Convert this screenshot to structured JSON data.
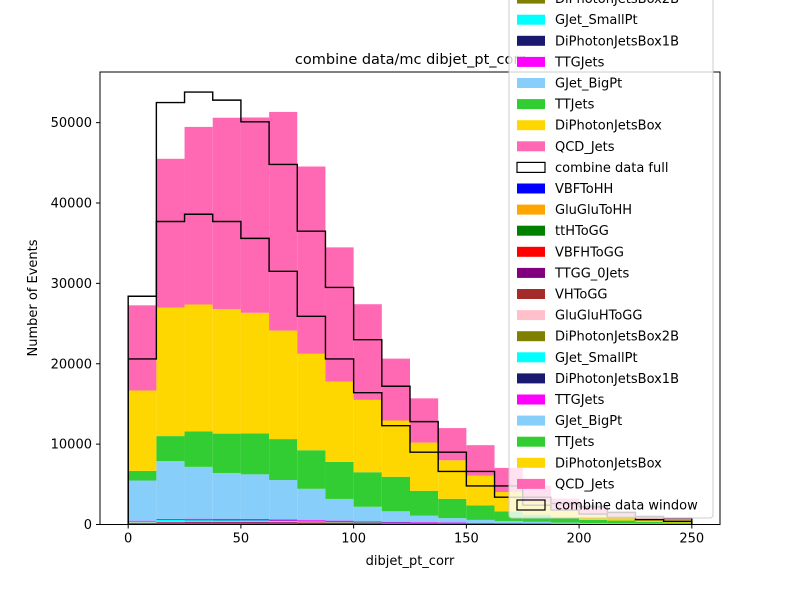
{
  "chart_data": {
    "type": "bar",
    "stacked": true,
    "title": "combine data/mc dibjet_pt_corr",
    "xlabel": "dibjet_pt_corr",
    "ylabel": "Number of Events",
    "xlim": [
      -12.5,
      262.5
    ],
    "ylim": [
      0,
      56300
    ],
    "xticks": [
      0,
      50,
      100,
      150,
      200,
      250
    ],
    "xtick_labels": [
      "0",
      "50",
      "100",
      "150",
      "200",
      "250"
    ],
    "yticks": [
      0,
      10000,
      20000,
      30000,
      40000,
      50000
    ],
    "ytick_labels": [
      "0",
      "10000",
      "20000",
      "30000",
      "40000",
      "50000"
    ],
    "grid": false,
    "legend_position": "upper-right",
    "bin_edges": [
      0,
      12.5,
      25,
      37.5,
      50,
      62.5,
      75,
      87.5,
      100,
      112.5,
      125,
      137.5,
      150,
      162.5,
      175,
      187.5,
      200,
      212.5,
      225,
      237.5,
      250
    ],
    "stack_series": [
      {
        "name": "VBFToHH",
        "color": "#0000ff",
        "values": [
          10,
          20,
          20,
          20,
          20,
          20,
          15,
          15,
          10,
          10,
          10,
          10,
          5,
          5,
          5,
          5,
          5,
          5,
          5,
          5
        ]
      },
      {
        "name": "GluGluToHH",
        "color": "#ffa500",
        "values": [
          20,
          30,
          30,
          30,
          30,
          30,
          25,
          20,
          20,
          15,
          15,
          10,
          10,
          10,
          10,
          5,
          5,
          5,
          5,
          5
        ]
      },
      {
        "name": "ttHToGG",
        "color": "#008000",
        "values": [
          40,
          60,
          60,
          60,
          60,
          60,
          50,
          45,
          40,
          35,
          30,
          25,
          20,
          15,
          15,
          10,
          10,
          10,
          10,
          5
        ]
      },
      {
        "name": "VBFHToGG",
        "color": "#ff0000",
        "values": [
          30,
          40,
          40,
          40,
          40,
          40,
          30,
          30,
          25,
          20,
          20,
          15,
          10,
          10,
          10,
          5,
          5,
          5,
          5,
          5
        ]
      },
      {
        "name": "TTGG_0Jets",
        "color": "#800080",
        "values": [
          60,
          100,
          120,
          120,
          120,
          110,
          100,
          90,
          70,
          60,
          50,
          40,
          35,
          30,
          25,
          20,
          15,
          15,
          10,
          10
        ]
      },
      {
        "name": "VHToGG",
        "color": "#a52a2a",
        "values": [
          30,
          40,
          40,
          40,
          40,
          40,
          30,
          30,
          25,
          20,
          20,
          15,
          15,
          10,
          10,
          5,
          5,
          5,
          5,
          5
        ]
      },
      {
        "name": "GluGluHToGG",
        "color": "#ffc0cb",
        "values": [
          60,
          80,
          80,
          70,
          70,
          60,
          50,
          40,
          35,
          30,
          25,
          20,
          15,
          15,
          10,
          10,
          5,
          5,
          5,
          5
        ]
      },
      {
        "name": "DiPhotonJetsBox2B",
        "color": "#808000",
        "values": [
          30,
          40,
          40,
          40,
          40,
          35,
          30,
          25,
          20,
          20,
          15,
          15,
          10,
          10,
          10,
          5,
          5,
          5,
          5,
          5
        ]
      },
      {
        "name": "GJet_SmallPt",
        "color": "#00ffff",
        "values": [
          100,
          150,
          100,
          100,
          80,
          60,
          50,
          40,
          30,
          20,
          15,
          10,
          10,
          5,
          5,
          5,
          5,
          5,
          5,
          5
        ]
      },
      {
        "name": "DiPhotonJetsBox1B",
        "color": "#191970",
        "values": [
          30,
          40,
          40,
          40,
          40,
          35,
          30,
          25,
          20,
          20,
          15,
          15,
          10,
          10,
          10,
          5,
          5,
          5,
          5,
          5
        ]
      },
      {
        "name": "TTGJets",
        "color": "#ff00ff",
        "values": [
          60,
          100,
          150,
          150,
          150,
          140,
          130,
          120,
          110,
          90,
          80,
          70,
          50,
          40,
          30,
          25,
          20,
          15,
          10,
          10
        ]
      },
      {
        "name": "GJet_BigPt",
        "color": "#87cefa",
        "values": [
          5000,
          7200,
          6450,
          5700,
          5550,
          4900,
          3900,
          2700,
          1800,
          1300,
          800,
          550,
          380,
          280,
          190,
          130,
          90,
          60,
          40,
          30
        ]
      },
      {
        "name": "TTJets",
        "color": "#32cd32",
        "values": [
          1200,
          3100,
          4400,
          4900,
          5100,
          5100,
          4800,
          4600,
          4300,
          4300,
          3100,
          2400,
          1800,
          1200,
          900,
          600,
          400,
          350,
          200,
          150
        ]
      },
      {
        "name": "DiPhotonJetsBox",
        "color": "#ffd700",
        "values": [
          10000,
          16000,
          15800,
          15500,
          15000,
          13500,
          12000,
          10000,
          9000,
          7000,
          6000,
          4800,
          3700,
          2400,
          1600,
          1100,
          700,
          550,
          400,
          300
        ]
      },
      {
        "name": "QCD_Jets",
        "color": "#ff69b4",
        "values": [
          10600,
          18500,
          22100,
          23800,
          24300,
          27200,
          23300,
          16700,
          11900,
          7700,
          5500,
          4000,
          3800,
          3000,
          2000,
          1300,
          1200,
          600,
          300,
          200
        ]
      }
    ],
    "step_series": [
      {
        "name": "combine data full",
        "color": "#000000",
        "values": [
          28400,
          52500,
          53800,
          52800,
          50100,
          44800,
          36500,
          29500,
          23000,
          17200,
          12800,
          9000,
          6600,
          4800,
          3400,
          2600,
          2200,
          1500,
          1000,
          800
        ]
      },
      {
        "name": "combine data window",
        "color": "#000000",
        "values": [
          20600,
          37700,
          38600,
          37700,
          35600,
          31500,
          25900,
          20600,
          16400,
          12300,
          9000,
          6600,
          4800,
          3400,
          2400,
          1800,
          1300,
          900,
          600,
          400
        ]
      }
    ],
    "legend": [
      {
        "label": "DiPhotonJetsBox2B",
        "color": "#808000",
        "kind": "fill"
      },
      {
        "label": "GJet_SmallPt",
        "color": "#00ffff",
        "kind": "fill"
      },
      {
        "label": "DiPhotonJetsBox1B",
        "color": "#191970",
        "kind": "fill"
      },
      {
        "label": "TTGJets",
        "color": "#ff00ff",
        "kind": "fill"
      },
      {
        "label": "GJet_BigPt",
        "color": "#87cefa",
        "kind": "fill"
      },
      {
        "label": "TTJets",
        "color": "#32cd32",
        "kind": "fill"
      },
      {
        "label": "DiPhotonJetsBox",
        "color": "#ffd700",
        "kind": "fill"
      },
      {
        "label": "QCD_Jets",
        "color": "#ff69b4",
        "kind": "fill"
      },
      {
        "label": "combine data full",
        "color": "#000000",
        "kind": "step"
      },
      {
        "label": "VBFToHH",
        "color": "#0000ff",
        "kind": "fill"
      },
      {
        "label": "GluGluToHH",
        "color": "#ffa500",
        "kind": "fill"
      },
      {
        "label": "ttHToGG",
        "color": "#008000",
        "kind": "fill"
      },
      {
        "label": "VBFHToGG",
        "color": "#ff0000",
        "kind": "fill"
      },
      {
        "label": "TTGG_0Jets",
        "color": "#800080",
        "kind": "fill"
      },
      {
        "label": "VHToGG",
        "color": "#a52a2a",
        "kind": "fill"
      },
      {
        "label": "GluGluHToGG",
        "color": "#ffc0cb",
        "kind": "fill"
      },
      {
        "label": "DiPhotonJetsBox2B",
        "color": "#808000",
        "kind": "fill"
      },
      {
        "label": "GJet_SmallPt",
        "color": "#00ffff",
        "kind": "fill"
      },
      {
        "label": "DiPhotonJetsBox1B",
        "color": "#191970",
        "kind": "fill"
      },
      {
        "label": "TTGJets",
        "color": "#ff00ff",
        "kind": "fill"
      },
      {
        "label": "GJet_BigPt",
        "color": "#87cefa",
        "kind": "fill"
      },
      {
        "label": "TTJets",
        "color": "#32cd32",
        "kind": "fill"
      },
      {
        "label": "DiPhotonJetsBox",
        "color": "#ffd700",
        "kind": "fill"
      },
      {
        "label": "QCD_Jets",
        "color": "#ff69b4",
        "kind": "fill"
      },
      {
        "label": "combine data window",
        "color": "#000000",
        "kind": "step"
      }
    ]
  }
}
